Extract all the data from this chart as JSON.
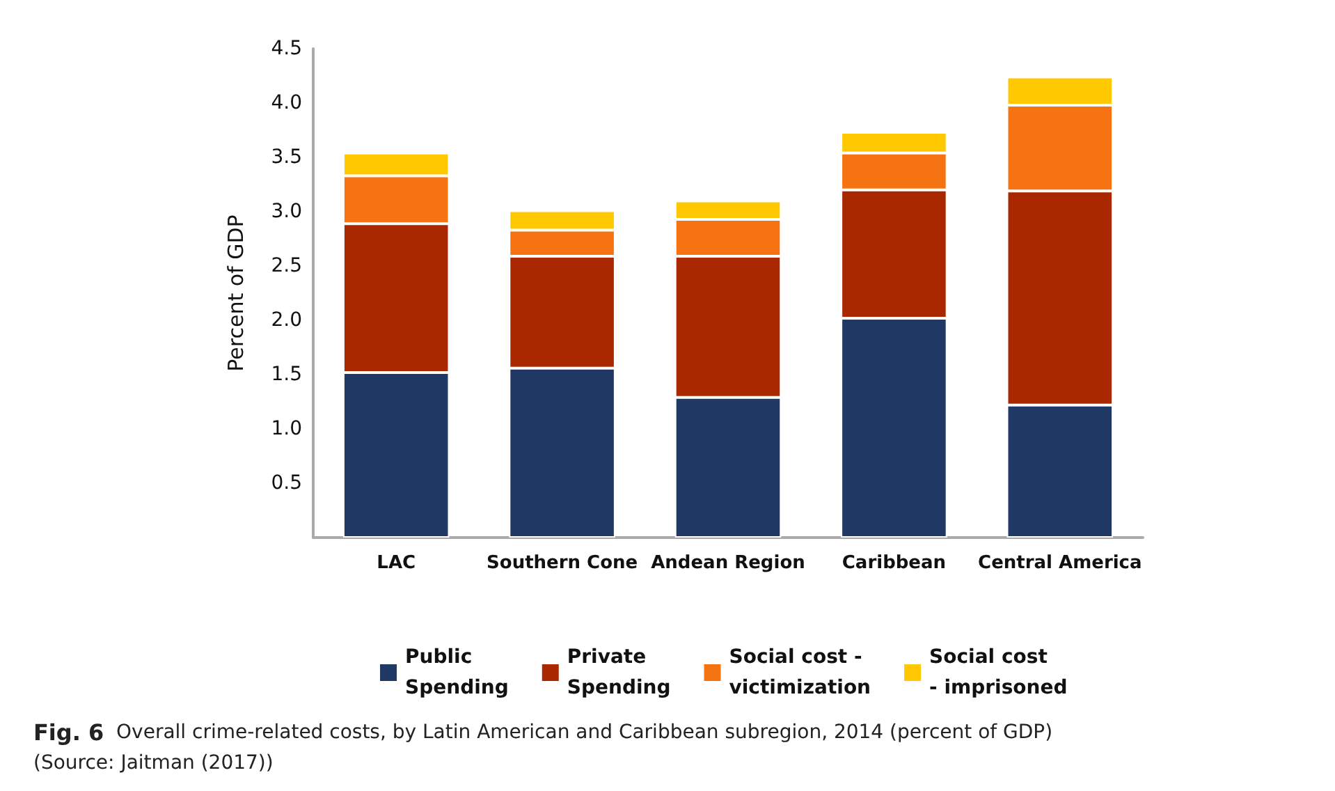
{
  "chart_data": {
    "type": "bar",
    "stacked": true,
    "title": "Fig. 6",
    "ylabel": "Percent of GDP",
    "categories": [
      "LAC",
      "Southern Cone",
      "Andean Region",
      "Caribbean",
      "Central America"
    ],
    "series": [
      {
        "name": "Public Spending",
        "color": "#203864",
        "values": [
          1.52,
          1.56,
          1.29,
          2.02,
          1.22
        ]
      },
      {
        "name": "Private Spending",
        "color": "#aa2800",
        "values": [
          1.37,
          1.03,
          1.3,
          1.18,
          1.97
        ]
      },
      {
        "name": "Social cost - victimization",
        "color": "#f57311",
        "values": [
          0.44,
          0.24,
          0.34,
          0.34,
          0.79
        ]
      },
      {
        "name": "Social cost - imprisoned",
        "color": "#ffc800",
        "values": [
          0.21,
          0.18,
          0.17,
          0.19,
          0.26
        ]
      }
    ],
    "ylim": [
      0,
      4.5
    ],
    "yticks": [
      0.5,
      {
        "value": 1,
        "label": "1.0"
      },
      1.5,
      {
        "value": 2,
        "label": "2.0"
      },
      2.5,
      {
        "value": 3,
        "label": "3.0"
      },
      3.5,
      {
        "value": 4,
        "label": "4.0"
      },
      4.5
    ],
    "grid": false,
    "legend": "bottom",
    "annotations": [
      "Overall crime-related costs, by Latin American and Caribbean subregion, 2014 (percent of GDP) (Source: Jaitman (2017))"
    ]
  }
}
